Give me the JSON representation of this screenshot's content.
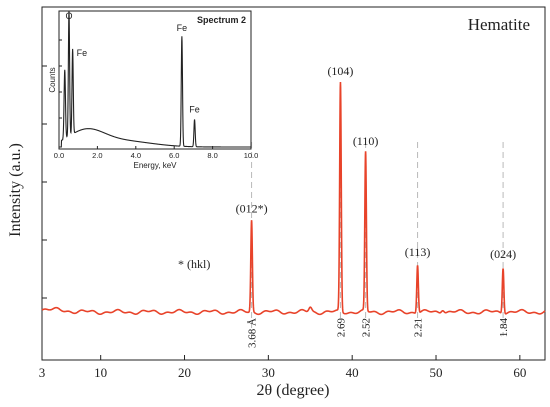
{
  "chart_data": [
    {
      "type": "line",
      "panel": "main",
      "title": "Hematite",
      "xlabel": "2θ (degree)",
      "ylabel": "Intensity (a.u.)",
      "xlim": [
        3,
        63
      ],
      "ylim": [
        0,
        100
      ],
      "x_ticks": [
        3,
        10,
        20,
        30,
        40,
        50,
        60
      ],
      "y_ticks_labeled": false,
      "grid": false,
      "series_color": "#e8432a",
      "baseline": 5,
      "peaks": [
        {
          "x": 28.0,
          "y": 43,
          "hkl": "(012*)",
          "d": "3.68 Å"
        },
        {
          "x": 38.6,
          "y": 100,
          "hkl": "(104)",
          "d": "2.69"
        },
        {
          "x": 41.6,
          "y": 71,
          "hkl": "(110)",
          "d": "2.52"
        },
        {
          "x": 47.8,
          "y": 25,
          "hkl": "(113)",
          "d": "2.21"
        },
        {
          "x": 58.0,
          "y": 24,
          "hkl": "(024)",
          "d": "1.84"
        }
      ],
      "minor_bumps": [
        {
          "x": 35.0,
          "y": 7
        },
        {
          "x": 50.8,
          "y": 6.5
        }
      ],
      "annotation": "* (hkl)"
    },
    {
      "type": "line",
      "panel": "inset",
      "title": "Spectrum 2",
      "xlabel": "Energy, keV",
      "ylabel": "Counts",
      "xlim": [
        0,
        10
      ],
      "x_ticks": [
        "0.0",
        "2.0",
        "4.0",
        "6.0",
        "8.0",
        "10.0"
      ],
      "series_color": "#222222",
      "peaks": [
        {
          "x": 0.52,
          "y": 100,
          "label": "O"
        },
        {
          "x": 0.71,
          "y": 68,
          "label": "Fe"
        },
        {
          "x": 6.4,
          "y": 88,
          "label": "Fe"
        },
        {
          "x": 7.06,
          "y": 23,
          "label": "Fe"
        }
      ]
    }
  ]
}
